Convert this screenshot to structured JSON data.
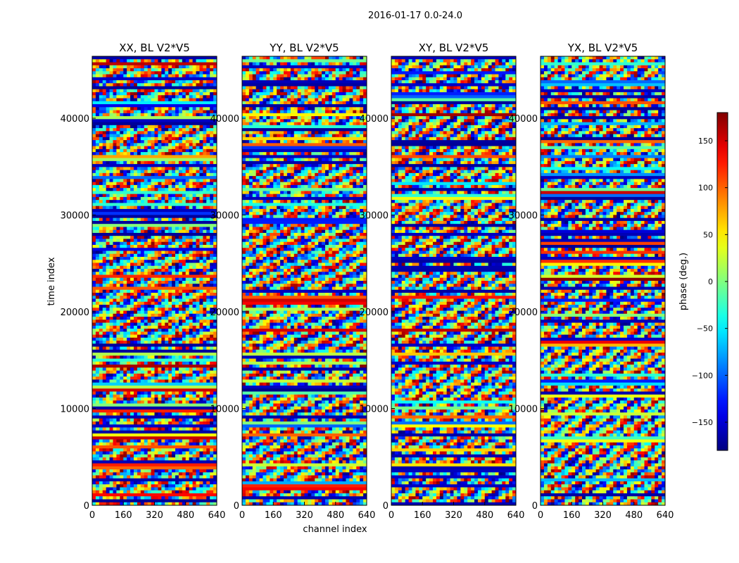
{
  "figure_title": "2016-01-17 0.0-24.0",
  "chart_data": {
    "type": "heatmap",
    "title": "2016-01-17 0.0-24.0",
    "xlabel": "channel index",
    "ylabel": "time index",
    "xlim": [
      0,
      640
    ],
    "ylim": [
      0,
      46400
    ],
    "xticks": [
      0,
      160,
      320,
      480,
      640
    ],
    "yticks": [
      0,
      10000,
      20000,
      30000,
      40000
    ],
    "xtick_labels": [
      "0",
      "160",
      "320",
      "480",
      "640"
    ],
    "ytick_labels": [
      "0",
      "10000",
      "20000",
      "30000",
      "40000"
    ],
    "panels": [
      {
        "name": "XX, BL V2*V5",
        "polarization": "XX"
      },
      {
        "name": "YY, BL V2*V5",
        "polarization": "YY"
      },
      {
        "name": "XY, BL V2*V5",
        "polarization": "XY"
      },
      {
        "name": "YX, BL V2*V5",
        "polarization": "YX"
      }
    ],
    "colorbar": {
      "label": "phase (deg.)",
      "range": [
        -180,
        180
      ],
      "ticks": [
        150,
        100,
        50,
        0,
        -50,
        -100,
        -150
      ],
      "tick_labels": [
        "150",
        "100",
        "50",
        "0",
        "−50",
        "−100",
        "−150"
      ],
      "colormap": "jet"
    }
  }
}
